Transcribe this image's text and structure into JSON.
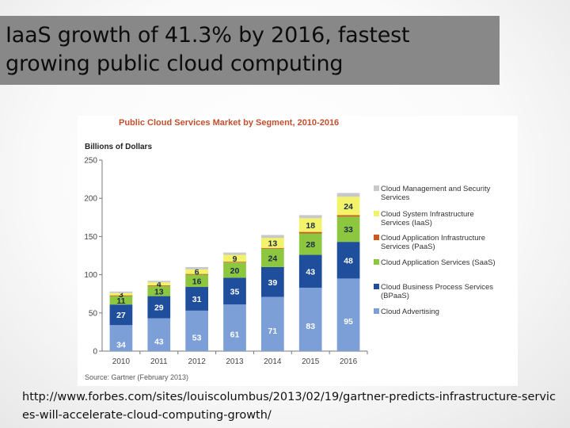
{
  "slide": {
    "title": "IaaS growth of 41.3% by 2016, fastest growing public cloud computing",
    "source_url": "http://www.forbes.com/sites/louiscolumbus/2013/02/19/gartner-predicts-infrastructure-services-will-accelerate-cloud-computing-growth/"
  },
  "chart_data": {
    "type": "bar",
    "stacked": true,
    "title": "Public Cloud Services Market by Segment, 2010-2016",
    "ylabel": "Billions of Dollars",
    "xlabel": "",
    "ylim": [
      0,
      250
    ],
    "yticks": [
      0,
      50,
      100,
      150,
      200,
      250
    ],
    "categories": [
      "2010",
      "2011",
      "2012",
      "2013",
      "2014",
      "2015",
      "2016"
    ],
    "source": "Source: Gartner (February 2013)",
    "legend_position": "right",
    "grid": false,
    "series": [
      {
        "name": "Cloud Advertising",
        "color": "#7b9fd6",
        "values": [
          34,
          43,
          53,
          61,
          71,
          83,
          95
        ],
        "labels": [
          "34",
          "43",
          "53",
          "61",
          "71",
          "83",
          "95"
        ]
      },
      {
        "name": "Cloud Business Process Services (BPaaS)",
        "color": "#1f4e9c",
        "values": [
          27,
          29,
          31,
          35,
          39,
          43,
          48
        ],
        "labels": [
          "27",
          "29",
          "31",
          "35",
          "39",
          "43",
          "48"
        ]
      },
      {
        "name": "Cloud Application Services (SaaS)",
        "color": "#8dc63f",
        "values": [
          11,
          13,
          16,
          20,
          24,
          28,
          33
        ],
        "labels": [
          "11",
          "13",
          "16",
          "20",
          "24",
          "28",
          "33"
        ]
      },
      {
        "name": "Cloud Application Infrastructure Services (PaaS)",
        "color": "#cc5a1e",
        "values": [
          1,
          1,
          1,
          1,
          1,
          2,
          2
        ],
        "labels": [
          "",
          "",
          "",
          "",
          "",
          "",
          ""
        ]
      },
      {
        "name": "Cloud System Infrastructure Services (IaaS)",
        "color": "#f3f36a",
        "values": [
          3,
          4,
          6,
          9,
          13,
          18,
          24
        ],
        "labels": [
          "3",
          "4",
          "6",
          "9",
          "13",
          "18",
          "24"
        ]
      },
      {
        "name": "Cloud Management and Security Services",
        "color": "#c9c9c9",
        "values": [
          2,
          2,
          3,
          3,
          4,
          4,
          5
        ],
        "labels": [
          "",
          "",
          "",
          "",
          "",
          "",
          ""
        ]
      }
    ],
    "legend_order": [
      5,
      4,
      3,
      2,
      1,
      0
    ]
  }
}
